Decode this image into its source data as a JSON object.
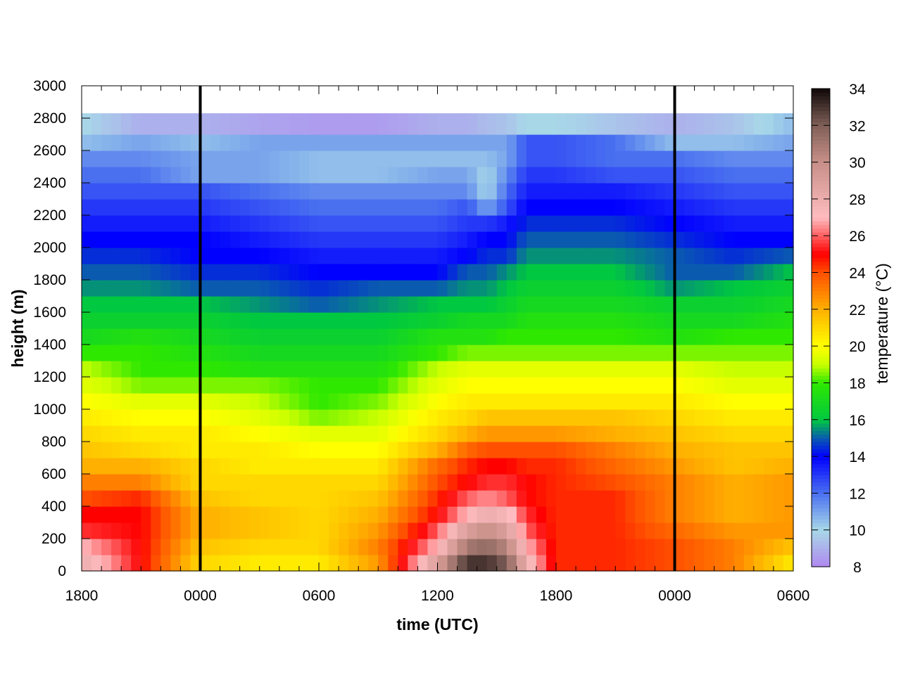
{
  "chart_data": {
    "type": "heatmap",
    "title": "",
    "xlabel": "time (UTC)",
    "ylabel": "height (m)",
    "colorbar_label": "temperature (°C)",
    "x_range_hours": [
      18,
      54
    ],
    "x_ticks": [
      {
        "hour": 18,
        "label": "1800"
      },
      {
        "hour": 24,
        "label": "0000"
      },
      {
        "hour": 30,
        "label": "0600"
      },
      {
        "hour": 36,
        "label": "1200"
      },
      {
        "hour": 42,
        "label": "1800"
      },
      {
        "hour": 48,
        "label": "0000"
      },
      {
        "hour": 54,
        "label": "0600"
      }
    ],
    "ylim": [
      0,
      3000
    ],
    "y_ticks": [
      0,
      200,
      400,
      600,
      800,
      1000,
      1200,
      1400,
      1600,
      1800,
      2000,
      2200,
      2400,
      2600,
      2800,
      3000
    ],
    "data_top_height_m": 2830,
    "midnight_markers_hours": [
      24,
      48
    ],
    "color_range": [
      8,
      34
    ],
    "color_ticks": [
      8,
      10,
      12,
      14,
      16,
      18,
      20,
      22,
      24,
      26,
      28,
      30,
      32,
      34
    ],
    "palette": [
      [
        8,
        "#b088f0"
      ],
      [
        10,
        "#a8d8e8"
      ],
      [
        12,
        "#4a70f0"
      ],
      [
        14,
        "#0000ff"
      ],
      [
        15,
        "#0a5ab0"
      ],
      [
        16,
        "#00c840"
      ],
      [
        18,
        "#2ee800"
      ],
      [
        19,
        "#c8ff00"
      ],
      [
        20,
        "#ffff00"
      ],
      [
        22,
        "#ffb000"
      ],
      [
        24,
        "#ff5000"
      ],
      [
        25,
        "#ff0000"
      ],
      [
        27,
        "#ffbcc0"
      ],
      [
        30,
        "#c89088"
      ],
      [
        32,
        "#806058"
      ],
      [
        34,
        "#100808"
      ]
    ],
    "level_heights_m": [
      0,
      100,
      200,
      300,
      400,
      500,
      600,
      700,
      800,
      900,
      1000,
      1100,
      1200,
      1300,
      1400,
      1500,
      1600,
      1700,
      1800,
      1900,
      2000,
      2100,
      2200,
      2300,
      2400,
      2500,
      2600,
      2700,
      2800
    ],
    "profile_times_hours": [
      18,
      21,
      24,
      27,
      30,
      33,
      36,
      37.5,
      38.5,
      39.5,
      40.5,
      42,
      45,
      48,
      51,
      54
    ],
    "temperature_profiles": [
      [
        28,
        27,
        25.5,
        25,
        24,
        23,
        22,
        21.5,
        21,
        20.5,
        20,
        19.5,
        19,
        18,
        17,
        16.5,
        16,
        15.5,
        15,
        14.5,
        14,
        13.5,
        13,
        12.5,
        12,
        11.5,
        10.5,
        10,
        10
      ],
      [
        25,
        25,
        25,
        25,
        24.5,
        23,
        22,
        21,
        20.5,
        20,
        19.5,
        18.5,
        18,
        18,
        17.5,
        16.5,
        16,
        15.5,
        15,
        14.5,
        14,
        13.5,
        13,
        12.5,
        12,
        11.5,
        11,
        9,
        9
      ],
      [
        21,
        21.5,
        22,
        22,
        21.5,
        21,
        21,
        20.5,
        20.5,
        20,
        19.5,
        18.5,
        18,
        17.5,
        17,
        16.5,
        16,
        15,
        14.5,
        14,
        14,
        13.5,
        13,
        12.5,
        11,
        11,
        10.5,
        9,
        9
      ],
      [
        20.5,
        21,
        21.5,
        21.5,
        21,
        21,
        20.5,
        20.5,
        20,
        19.5,
        19,
        18.5,
        17.5,
        17,
        16.5,
        16,
        15.5,
        15,
        14.5,
        14,
        13.5,
        13,
        12.5,
        12,
        11,
        11,
        11,
        8.7,
        8.7
      ],
      [
        20.5,
        21,
        21,
        21,
        21,
        21,
        20.5,
        20,
        19.5,
        18.5,
        18,
        18,
        17.5,
        17,
        16.5,
        16,
        15,
        14.5,
        14,
        13.5,
        13,
        12.5,
        12,
        11.5,
        10.5,
        10.5,
        11,
        8.5,
        8.5
      ],
      [
        22.5,
        23,
        22.5,
        22,
        21.5,
        21,
        20.5,
        20,
        19.5,
        19,
        18.5,
        18,
        17.5,
        17,
        16.5,
        16,
        15.5,
        15,
        14,
        13.5,
        13,
        12.5,
        12,
        11.5,
        10.5,
        10.5,
        11,
        8.5,
        8.5
      ],
      [
        29,
        27,
        26,
        25,
        24.5,
        24,
        23.5,
        22,
        21,
        20.5,
        20,
        19.5,
        19,
        18,
        17.5,
        16.5,
        16,
        15,
        14,
        13.5,
        13,
        12.5,
        12,
        11.5,
        11,
        10.5,
        11,
        9,
        9
      ],
      [
        33,
        31,
        29,
        27,
        26,
        25,
        24.5,
        23.5,
        22,
        21,
        20.5,
        20,
        19.5,
        18.5,
        17.5,
        17,
        16,
        15.5,
        15,
        14,
        13.5,
        13,
        12.5,
        11.5,
        11,
        10.5,
        11,
        9,
        9
      ],
      [
        33,
        31.5,
        30,
        28,
        26.5,
        25.5,
        25,
        24,
        22.5,
        21.5,
        20.5,
        20,
        19.5,
        18.5,
        17.5,
        17,
        16,
        15.5,
        15,
        14.5,
        14,
        13,
        11,
        10,
        10,
        10.5,
        11,
        9.3,
        9.3
      ],
      [
        32,
        30.5,
        29,
        27.5,
        26,
        25.5,
        25,
        24,
        22.5,
        21.5,
        20.5,
        20,
        19.5,
        18.5,
        18,
        17,
        16.5,
        16,
        15.5,
        14.5,
        14,
        13.5,
        12.5,
        12,
        11.5,
        11,
        11,
        9.5,
        9.5
      ],
      [
        28,
        27,
        26,
        25.5,
        25,
        25,
        24.5,
        24,
        22.5,
        21.5,
        20.5,
        20,
        19.5,
        18.5,
        18,
        17.5,
        17,
        16.5,
        16,
        15.5,
        15,
        14.5,
        14,
        13.5,
        13,
        12.5,
        12.5,
        10,
        10
      ],
      [
        24.5,
        24.5,
        24.5,
        24.5,
        24.5,
        24.5,
        24.5,
        24,
        22.5,
        21.5,
        20.5,
        20,
        19.5,
        18.5,
        18,
        17.5,
        17,
        16.5,
        16,
        15.5,
        15,
        14.5,
        14,
        13.5,
        13,
        12.5,
        12.5,
        10,
        10
      ],
      [
        24.5,
        24.5,
        24.5,
        24.5,
        24.5,
        24,
        23.5,
        23,
        22,
        21.5,
        20.5,
        20,
        19.5,
        18.5,
        18,
        17.5,
        17,
        16.5,
        16,
        15.5,
        15,
        14.5,
        14,
        13.5,
        12.5,
        12,
        12,
        9.5,
        9.5
      ],
      [
        24,
        24,
        23.5,
        23,
        23,
        23,
        22.5,
        22,
        21.5,
        21,
        20.5,
        20,
        19.5,
        18.5,
        17.5,
        17,
        16.5,
        15.5,
        15,
        15,
        14.5,
        14,
        13.5,
        13,
        12.5,
        12,
        10.5,
        9,
        9
      ],
      [
        23,
        23,
        22.5,
        22,
        22,
        22,
        21.5,
        21.5,
        21,
        20.5,
        20,
        19.5,
        19,
        18.5,
        18,
        17,
        16.5,
        16,
        15,
        14.5,
        14,
        13.5,
        13,
        12.5,
        12,
        11.5,
        10.5,
        9.5,
        9.5
      ],
      [
        20.5,
        21.5,
        22.5,
        22.5,
        22.5,
        22.5,
        22,
        21.5,
        21,
        20.5,
        20,
        19.5,
        19,
        18.5,
        18,
        17.5,
        17,
        16.5,
        16,
        15,
        14,
        13.5,
        13,
        12.5,
        12,
        11.5,
        11,
        10.5,
        10.5
      ]
    ]
  }
}
